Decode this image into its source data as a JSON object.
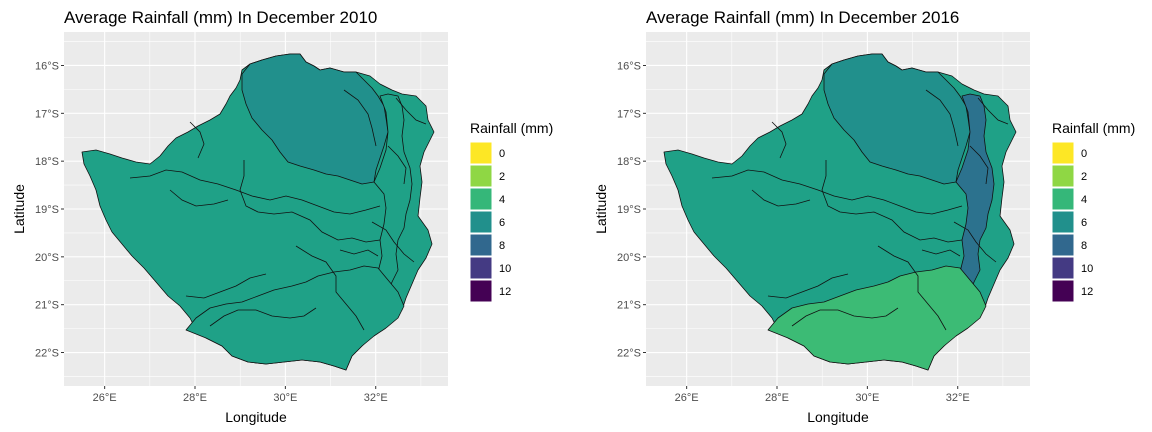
{
  "chart_data": [
    {
      "type": "choropleth",
      "title": "Average Rainfall (mm) In December 2010",
      "xlabel": "Longitude",
      "ylabel": "Latitude",
      "x_ticks": [
        "26°E",
        "28°E",
        "30°E",
        "32°E"
      ],
      "y_ticks": [
        "16°S",
        "17°S",
        "18°S",
        "19°S",
        "20°S",
        "21°S",
        "22°S"
      ],
      "xlim": [
        25.1,
        33.6
      ],
      "ylim": [
        -22.7,
        -15.3
      ],
      "grid": true,
      "legend": {
        "title": "Rainfall (mm)",
        "placement": "right",
        "levels": [
          {
            "label": "0",
            "color": "#FDE725"
          },
          {
            "label": "2",
            "color": "#8FD744"
          },
          {
            "label": "4",
            "color": "#35B779"
          },
          {
            "label": "6",
            "color": "#21908C"
          },
          {
            "label": "8",
            "color": "#31688E"
          },
          {
            "label": "10",
            "color": "#443A83"
          },
          {
            "label": "12",
            "color": "#440154"
          }
        ]
      },
      "regions": [
        {
          "fill": "#1FA187"
        },
        {
          "fill": "#21908C"
        },
        {
          "fill": "#1FA187"
        },
        {
          "fill": "#1FA187"
        }
      ]
    },
    {
      "type": "choropleth",
      "title": "Average Rainfall (mm) In December 2016",
      "xlabel": "Longitude",
      "ylabel": "Latitude",
      "x_ticks": [
        "26°E",
        "28°E",
        "30°E",
        "32°E"
      ],
      "y_ticks": [
        "16°S",
        "17°S",
        "18°S",
        "19°S",
        "20°S",
        "21°S",
        "22°S"
      ],
      "xlim": [
        25.1,
        33.6
      ],
      "ylim": [
        -22.7,
        -15.3
      ],
      "grid": true,
      "legend": {
        "title": "Rainfall (mm)",
        "placement": "right",
        "levels": [
          {
            "label": "0",
            "color": "#FDE725"
          },
          {
            "label": "2",
            "color": "#8FD744"
          },
          {
            "label": "4",
            "color": "#35B779"
          },
          {
            "label": "6",
            "color": "#21908C"
          },
          {
            "label": "8",
            "color": "#31688E"
          },
          {
            "label": "10",
            "color": "#443A83"
          },
          {
            "label": "12",
            "color": "#440154"
          }
        ]
      },
      "regions": [
        {
          "fill": "#1FA187"
        },
        {
          "fill": "#21908C"
        },
        {
          "fill": "#2C728E"
        },
        {
          "fill": "#3CBB75"
        }
      ]
    }
  ]
}
